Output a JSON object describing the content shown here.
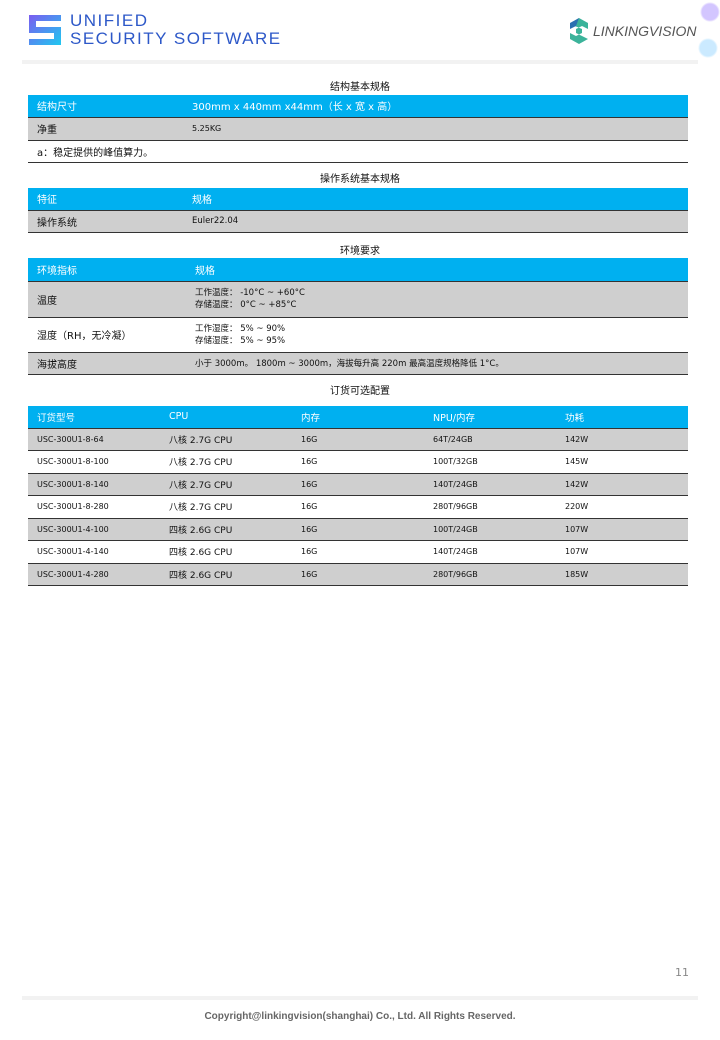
{
  "header": {
    "brand_line1": "UNIFIED",
    "brand_line2": "SECURITY SOFTWARE",
    "partner": "LINKINGVISION"
  },
  "structure": {
    "title": "结构基本规格",
    "rows": [
      [
        "结构尺寸",
        "300mm x 440mm x44mm（长 x 宽 x 高）"
      ],
      [
        "净重",
        "5.25KG"
      ]
    ],
    "note": "a：稳定提供的峰值算力。"
  },
  "os": {
    "title": "操作系统基本规格",
    "header": [
      "特征",
      "规格"
    ],
    "rows": [
      [
        "操作系统",
        "Euler22.04"
      ]
    ]
  },
  "env": {
    "title": "环境要求",
    "header": [
      "环境指标",
      "规格"
    ],
    "temp": {
      "label": "温度",
      "line1": "工作温度： -10°C ~ +60°C",
      "line2": "存储温度： 0°C ~ +85°C"
    },
    "humidity": {
      "label": "湿度（RH，无冷凝）",
      "line1": "工作湿度： 5% ~ 90%",
      "line2": "存储湿度： 5% ~ 95%"
    },
    "altitude": {
      "label": "海拔高度",
      "value": "小于 3000m。 1800m ~ 3000m，海拔每升高 220m 最高温度规格降低 1°C。"
    }
  },
  "order": {
    "title": "订货可选配置",
    "header": [
      "订货型号",
      "CPU",
      "内存",
      "NPU/内存",
      "功耗"
    ],
    "rows": [
      [
        "USC-300U1-8-64",
        "八核 2.7G CPU",
        "16G",
        "64T/24GB",
        "142W"
      ],
      [
        "USC-300U1-8-100",
        "八核 2.7G CPU",
        "16G",
        "100T/32GB",
        "145W"
      ],
      [
        "USC-300U1-8-140",
        "八核 2.7G CPU",
        "16G",
        "140T/24GB",
        "142W"
      ],
      [
        "USC-300U1-8-280",
        "八核 2.7G CPU",
        "16G",
        "280T/96GB",
        "220W"
      ],
      [
        "USC-300U1-4-100",
        "四核 2.6G CPU",
        "16G",
        "100T/24GB",
        "107W"
      ],
      [
        "USC-300U1-4-140",
        "四核 2.6G CPU",
        "16G",
        "140T/24GB",
        "107W"
      ],
      [
        "USC-300U1-4-280",
        "四核 2.6G CPU",
        "16G",
        "280T/96GB",
        "185W"
      ]
    ]
  },
  "footer": {
    "page": "11",
    "copyright": "Copyright@linkingvision(shanghai) Co., Ltd. All Rights Reserved."
  },
  "colors": {
    "header_blue": "#00b0f0",
    "row_gray": "#cfcfcf",
    "brand_blue": "#2d58c8"
  }
}
